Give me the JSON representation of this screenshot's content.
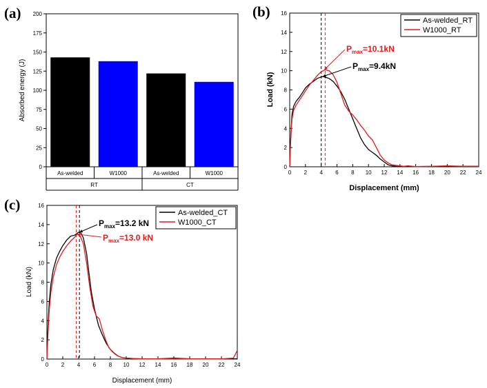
{
  "panels": {
    "a": "(a)",
    "b": "(b)",
    "c": "(c)"
  },
  "colors": {
    "black": "#000000",
    "blue": "#0000ff",
    "red": "#e41a1c"
  },
  "chart_data": [
    {
      "id": "a",
      "type": "bar",
      "categories": [
        "As-welded",
        "W1000",
        "As-welded",
        "W1000"
      ],
      "groups": [
        {
          "label": "RT",
          "span": [
            0,
            1
          ]
        },
        {
          "label": "CT",
          "span": [
            2,
            3
          ]
        }
      ],
      "values": [
        143,
        138,
        122,
        111
      ],
      "bar_colors": [
        "#000000",
        "#0000ff",
        "#000000",
        "#0000ff"
      ],
      "ylabel": "Absorbed energy (J)",
      "ylim": [
        0,
        200
      ],
      "yticks": [
        0,
        25,
        50,
        75,
        100,
        125,
        150,
        175,
        200
      ]
    },
    {
      "id": "b",
      "type": "line",
      "xlabel": "Displacement (mm)",
      "ylabel": "Load (kN)",
      "xlim": [
        0,
        24
      ],
      "ylim": [
        0,
        16
      ],
      "xticks": [
        0,
        2,
        4,
        6,
        8,
        10,
        12,
        14,
        16,
        18,
        20,
        22,
        24
      ],
      "yticks": [
        0,
        2,
        4,
        6,
        8,
        10,
        12,
        14,
        16
      ],
      "legend_position": "top-right",
      "series": [
        {
          "name": "As-welded_RT",
          "color": "#000000",
          "x": [
            0,
            0.1,
            0.2,
            0.3,
            0.5,
            0.8,
            1.2,
            1.6,
            2.0,
            2.5,
            3.0,
            3.5,
            4.0,
            4.2,
            4.6,
            5.0,
            5.5,
            6.0,
            6.5,
            7.0,
            7.5,
            8.0,
            8.5,
            9.0,
            9.5,
            10.0,
            10.5,
            11.0,
            11.5,
            12.0,
            12.5,
            13.0,
            13.5,
            14.0,
            16.0,
            20.0,
            24.0
          ],
          "y": [
            0,
            2.5,
            4.2,
            5.5,
            6.3,
            6.8,
            7.2,
            7.7,
            8.2,
            8.6,
            8.9,
            9.2,
            9.35,
            9.4,
            9.3,
            9.2,
            8.9,
            8.4,
            7.8,
            7.0,
            6.0,
            5.0,
            4.0,
            3.0,
            2.3,
            1.8,
            1.5,
            1.2,
            0.8,
            0.5,
            0.2,
            0.1,
            0.05,
            0.02,
            0.02,
            0.05,
            0.05
          ]
        },
        {
          "name": "W1000_RT",
          "color": "#e41a1c",
          "x": [
            0,
            0.1,
            0.2,
            0.3,
            0.5,
            0.8,
            1.2,
            1.6,
            2.0,
            2.5,
            3.0,
            3.5,
            4.0,
            4.5,
            5.0,
            5.5,
            6.0,
            6.5,
            7.0,
            7.5,
            8.0,
            8.5,
            9.0,
            9.5,
            10.0,
            10.5,
            11.0,
            11.5,
            12.0,
            12.5,
            13.0,
            13.5,
            14.0,
            14.5,
            15.0,
            16.0,
            18.0,
            20.0,
            22.0,
            24.0
          ],
          "y": [
            0,
            2.2,
            3.9,
            5.0,
            5.9,
            6.4,
            6.9,
            7.4,
            7.9,
            8.5,
            9.0,
            9.5,
            9.9,
            10.1,
            10.0,
            9.6,
            8.8,
            7.6,
            6.4,
            5.8,
            5.4,
            4.9,
            4.3,
            3.8,
            3.2,
            2.8,
            2.0,
            1.2,
            0.7,
            0.4,
            0.2,
            0.15,
            0.1,
            0.05,
            0.1,
            0.02,
            0.05,
            0.1,
            0.05,
            0.05
          ]
        }
      ],
      "annotations": [
        {
          "label": "P",
          "sub": "max",
          "value": "=10.1kN",
          "color": "#e41a1c"
        },
        {
          "label": "P",
          "sub": "max",
          "value": "=9.4kN",
          "color": "#000000"
        }
      ],
      "markers_x": [
        {
          "x": 4.0,
          "color": "#000000"
        },
        {
          "x": 4.5,
          "color": "#e41a1c"
        }
      ]
    },
    {
      "id": "c",
      "type": "line",
      "xlabel": "Displacement (mm)",
      "ylabel": "Load (kN)",
      "xlim": [
        0,
        24
      ],
      "ylim": [
        0,
        16
      ],
      "xticks": [
        0,
        2,
        4,
        6,
        8,
        10,
        12,
        14,
        16,
        18,
        20,
        22,
        24
      ],
      "yticks": [
        0,
        2,
        4,
        6,
        8,
        10,
        12,
        14,
        16
      ],
      "legend_position": "top-right",
      "series": [
        {
          "name": "As-welded_CT",
          "color": "#000000",
          "x": [
            0,
            0.1,
            0.2,
            0.3,
            0.5,
            0.8,
            1.2,
            1.6,
            2.0,
            2.5,
            3.0,
            3.5,
            4.0,
            4.3,
            4.6,
            5.0,
            5.3,
            5.6,
            6.0,
            6.5,
            7.0,
            7.5,
            8.0,
            8.5,
            9.0,
            9.5,
            10.0,
            11.0,
            12.0,
            14.0,
            16.0,
            18.0,
            20.0,
            22.0,
            24.0
          ],
          "y": [
            0,
            2.8,
            4.5,
            6.0,
            7.8,
            9.3,
            10.5,
            11.2,
            11.8,
            12.4,
            12.8,
            12.9,
            13.2,
            13.1,
            12.6,
            11.0,
            9.0,
            7.0,
            5.2,
            3.5,
            2.5,
            1.6,
            1.0,
            0.6,
            0.3,
            0.15,
            0.1,
            0.05,
            0.02,
            0.02,
            0.1,
            0.02,
            0.02,
            0.02,
            0.02
          ]
        },
        {
          "name": "W1000_CT",
          "color": "#e41a1c",
          "x": [
            0,
            0.1,
            0.2,
            0.3,
            0.5,
            0.8,
            1.2,
            1.6,
            2.0,
            2.5,
            3.0,
            3.5,
            3.8,
            4.2,
            4.6,
            5.0,
            5.4,
            5.8,
            6.2,
            6.6,
            7.0,
            7.4,
            7.8,
            8.2,
            8.6,
            9.0,
            9.5,
            10.0,
            11.0,
            12.0,
            14.0,
            16.0,
            18.0,
            20.0,
            22.0,
            23.5,
            24.0
          ],
          "y": [
            0,
            2.0,
            3.8,
            5.2,
            7.0,
            8.5,
            9.8,
            10.6,
            11.2,
            11.8,
            12.3,
            12.7,
            13.0,
            12.8,
            12.0,
            10.0,
            7.5,
            5.5,
            4.5,
            4.2,
            3.0,
            2.0,
            1.2,
            0.8,
            0.5,
            0.3,
            0.15,
            0.1,
            0.05,
            0.02,
            0.02,
            0.05,
            0.02,
            0.02,
            0.02,
            0.1,
            0.9
          ]
        }
      ],
      "annotations": [
        {
          "label": "P",
          "sub": "max",
          "value": "=13.2 kN",
          "color": "#000000"
        },
        {
          "label": "P",
          "sub": "max",
          "value": "=13.0 kN",
          "color": "#e41a1c"
        }
      ],
      "markers_x": [
        {
          "x": 3.7,
          "color": "#e41a1c"
        },
        {
          "x": 4.1,
          "color": "#000000"
        }
      ]
    }
  ]
}
